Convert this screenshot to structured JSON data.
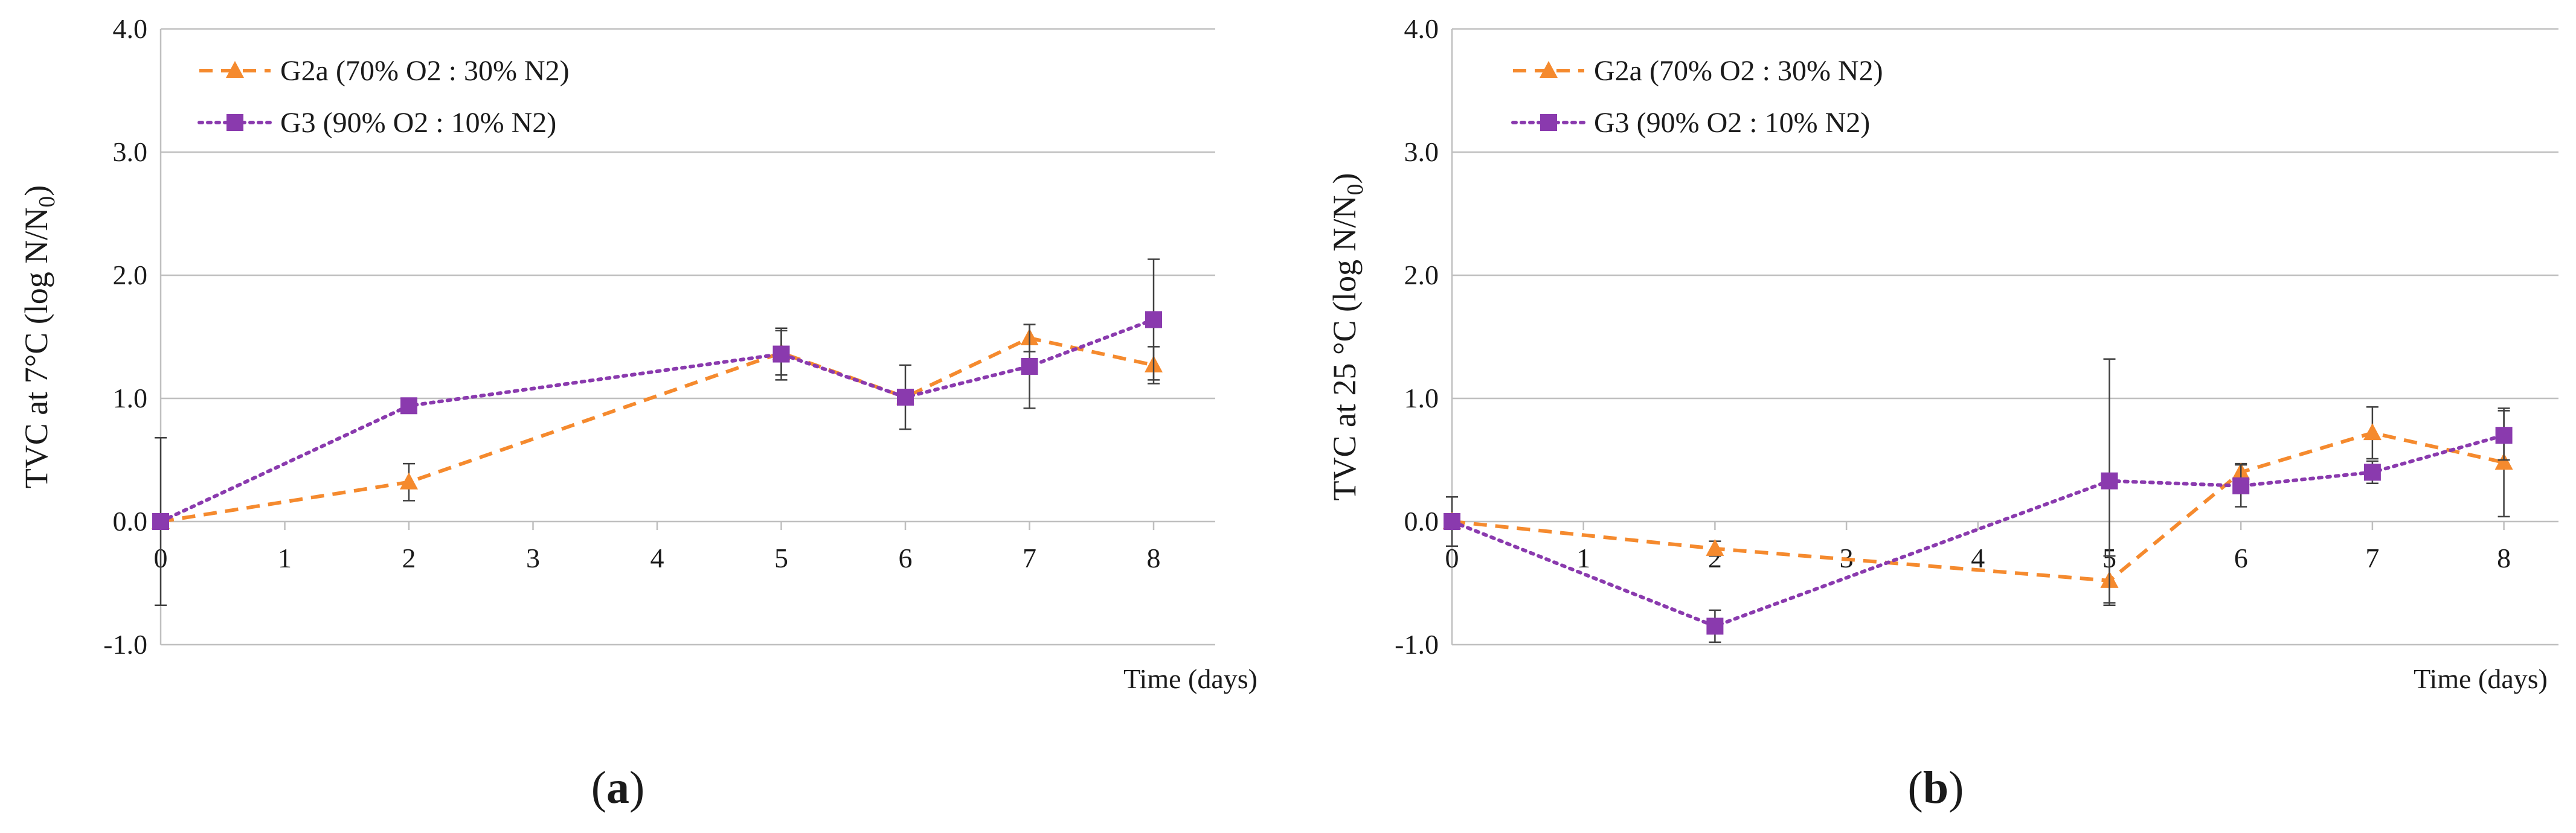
{
  "colors": {
    "g2a": "#F58A2E",
    "g3": "#8A3AAE",
    "axis": "#bfbfbf",
    "error_bar": "#404040"
  },
  "chart_data": [
    {
      "type": "line",
      "panel_label": "a",
      "title": "",
      "xlabel": "Time (days)",
      "ylabel_main": "TVC at 7°C (log N/N",
      "ylabel_sub": "0",
      "ylabel_tail": ")",
      "x_ticks": [
        0,
        1,
        2,
        3,
        4,
        5,
        6,
        7,
        8
      ],
      "y_ticks": [
        "-1.0",
        "0.0",
        "1.0",
        "2.0",
        "3.0",
        "4.0"
      ],
      "xlim": [
        0,
        8.5
      ],
      "ylim": [
        -1,
        4
      ],
      "legend_position": "top-left",
      "series": [
        {
          "name": "G2a (70% O2 : 30% N2)",
          "color_key": "g2a",
          "marker": "triangle",
          "line_style": "dashed",
          "x": [
            0,
            2,
            5,
            6,
            7,
            8
          ],
          "y": [
            0.0,
            0.32,
            1.37,
            1.01,
            1.49,
            1.27
          ],
          "err": [
            0.0,
            0.15,
            0.18,
            0.0,
            0.11,
            0.15
          ]
        },
        {
          "name": "G3 (90% O2 : 10% N2)",
          "color_key": "g3",
          "marker": "square",
          "line_style": "dotted",
          "x": [
            0,
            2,
            5,
            6,
            7,
            8
          ],
          "y": [
            0.0,
            0.94,
            1.36,
            1.01,
            1.26,
            1.64
          ],
          "err": [
            0.68,
            0.0,
            0.21,
            0.26,
            0.34,
            0.49
          ]
        }
      ]
    },
    {
      "type": "line",
      "panel_label": "b",
      "title": "",
      "xlabel": "Time (days)",
      "ylabel_main": "TVC at 25 °C (log N/N",
      "ylabel_sub": "0",
      "ylabel_tail": ")",
      "x_ticks": [
        0,
        1,
        2,
        3,
        4,
        5,
        6,
        7,
        8
      ],
      "y_ticks": [
        "-1.0",
        "0.0",
        "1.0",
        "2.0",
        "3.0",
        "4.0"
      ],
      "xlim": [
        0,
        8.5
      ],
      "ylim": [
        -1,
        4
      ],
      "legend_position": "top-left",
      "series": [
        {
          "name": "G2a (70% O2 : 30% N2)",
          "color_key": "g2a",
          "marker": "triangle",
          "line_style": "dashed",
          "x": [
            0,
            2,
            5,
            6,
            7,
            8
          ],
          "y": [
            0.0,
            -0.22,
            -0.48,
            0.4,
            0.72,
            0.48
          ],
          "err": [
            0.2,
            0.06,
            0.2,
            0.07,
            0.21,
            0.44
          ]
        },
        {
          "name": "G3 (90% O2 : 10% N2)",
          "color_key": "g3",
          "marker": "square",
          "line_style": "dotted",
          "x": [
            0,
            2,
            5,
            6,
            7,
            8
          ],
          "y": [
            0.0,
            -0.85,
            0.33,
            0.29,
            0.4,
            0.7
          ],
          "err": [
            0.0,
            0.13,
            0.99,
            0.17,
            0.09,
            0.2
          ]
        }
      ]
    }
  ]
}
